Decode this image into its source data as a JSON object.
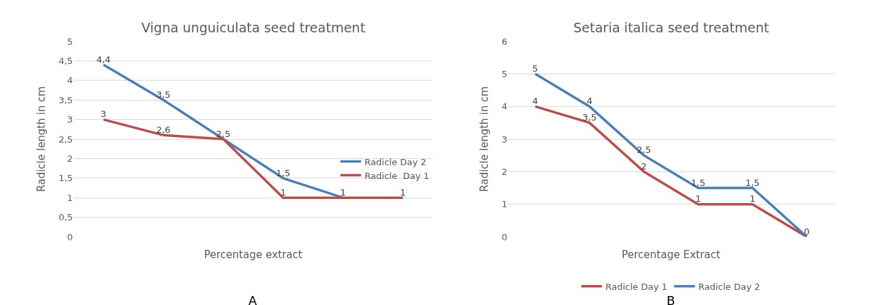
{
  "chart_data": [
    {
      "type": "line",
      "title": "Vigna unguiculata seed treatment",
      "xlabel": "Percentage extract",
      "ylabel": "Radicle length in cm",
      "categories": [
        null,
        null,
        null,
        null,
        null,
        null
      ],
      "series": [
        {
          "name": "Radicle Day 2",
          "color": "#4a7ebb",
          "values": [
            4.4,
            3.5,
            2.5,
            1.5,
            1,
            null
          ],
          "value_labels": [
            "4,4",
            "3,5",
            "2,5",
            "1,5",
            "1",
            null
          ]
        },
        {
          "name": "Radicle  Day 1",
          "color": "#be4b48",
          "values": [
            3,
            2.6,
            2.5,
            1,
            1,
            1
          ],
          "value_labels": [
            "3",
            "2,6",
            null,
            "1",
            null,
            "1"
          ]
        }
      ],
      "ylim": [
        0,
        5
      ],
      "yticks": [
        0,
        {
          "value": 0.5,
          "label": "0,5"
        },
        1,
        {
          "value": 1.5,
          "label": "1,5"
        },
        2,
        {
          "value": 2.5,
          "label": "2,5"
        },
        3,
        {
          "value": 3.5,
          "label": "3,5"
        },
        4,
        {
          "value": 4.5,
          "label": "4,5"
        },
        5
      ],
      "grid": "y",
      "legend": "right",
      "tick_labels": "y",
      "marker": "none",
      "line_style": "solid",
      "annotations": [
        "A"
      ]
    },
    {
      "type": "line",
      "title": "Setaria italica seed treatment",
      "xlabel": "Percentage Extract",
      "ylabel": "Radicle length in cm",
      "categories": [
        null,
        null,
        null,
        null,
        null,
        null
      ],
      "series": [
        {
          "name": "Radicle Day 1",
          "color": "#be4b48",
          "values": [
            4,
            3.5,
            2,
            1,
            1,
            0
          ],
          "value_labels": [
            "4",
            "3,5",
            "2",
            "1",
            "1",
            null
          ]
        },
        {
          "name": "Radicle Day 2",
          "color": "#4a7ebb",
          "values": [
            5,
            4,
            2.5,
            1.5,
            1.5,
            0
          ],
          "value_labels": [
            "5",
            "4",
            "2,5",
            "1,5",
            "1,5",
            "0"
          ]
        }
      ],
      "ylim": [
        0,
        6
      ],
      "yticks": [
        0,
        1,
        2,
        3,
        4,
        5,
        6
      ],
      "grid": "y",
      "legend": "bottom",
      "tick_labels": "y",
      "marker": "none",
      "line_style": "solid",
      "annotations": [
        "B"
      ]
    }
  ]
}
